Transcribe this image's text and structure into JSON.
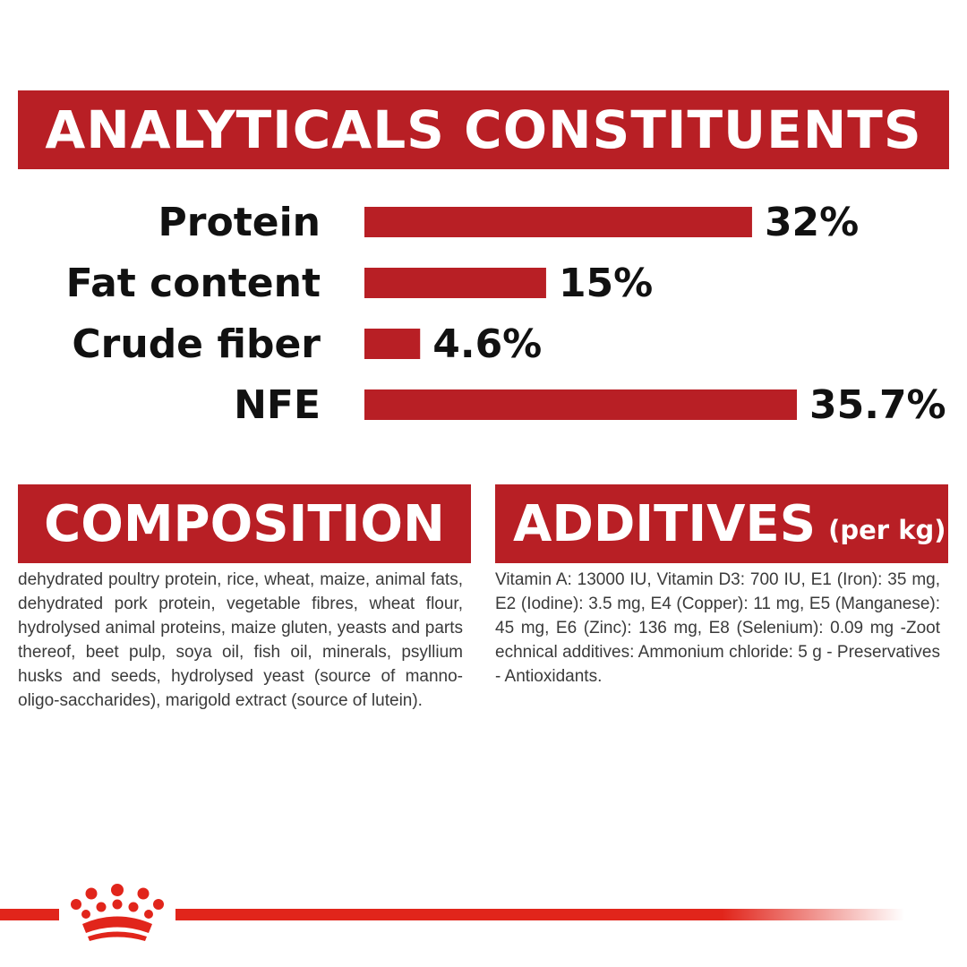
{
  "header": {
    "title": "ANALYTICALS CONSTITUENTS"
  },
  "chart_data": {
    "type": "bar",
    "orientation": "horizontal",
    "title": "ANALYTICALS CONSTITUENTS",
    "categories": [
      "Protein",
      "Fat content",
      "Crude fiber",
      "NFE"
    ],
    "values": [
      32,
      15,
      4.6,
      35.7
    ],
    "value_labels": [
      "32%",
      "15%",
      "4.6%",
      "35.7%"
    ],
    "unit": "%",
    "xlim": [
      0,
      35.7
    ],
    "grid": false,
    "legend": "none",
    "bar_color": "#b81f25"
  },
  "composition": {
    "title": "COMPOSITION",
    "text": "dehydrated poultry protein, rice, wheat, maize, animal fats, dehydrated pork protein, vegetable fibres, wheat flour, hydrolysed animal proteins, maize gluten, yeasts and parts thereof, beet pulp, soya oil, fish oil, minerals, psyllium husks and seeds, hydrolysed yeast (source of manno-oligo-saccharides), marigold extract (source of lutein)."
  },
  "additives": {
    "title": "ADDITIVES",
    "unit": "(per kg)",
    "text": "Vitamin A: 13000 IU, Vitamin D3: 700 IU, E1 (Iron): 35 mg, E2 (Iodine): 3.5 mg, E4 (Copper): 11 mg, E5 (Manganese): 45 mg, E6 (Zinc): 136 mg, E8 (Selenium): 0.09 mg -Zoot echnical additives: Ammonium chloride: 5 g - Preservatives - Antioxidants."
  },
  "colors": {
    "brand_red": "#b81f25",
    "stripe_red": "#e1251b",
    "text": "#111111"
  },
  "footer": {
    "logo_icon": "royal-crown-logo-icon"
  }
}
